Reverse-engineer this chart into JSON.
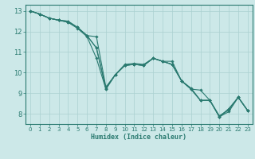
{
  "xlabel": "Humidex (Indice chaleur)",
  "xlim": [
    -0.5,
    23.5
  ],
  "ylim": [
    7.5,
    13.3
  ],
  "yticks": [
    8,
    9,
    10,
    11,
    12,
    13
  ],
  "xticks": [
    0,
    1,
    2,
    3,
    4,
    5,
    6,
    7,
    8,
    9,
    10,
    11,
    12,
    13,
    14,
    15,
    16,
    17,
    18,
    19,
    20,
    21,
    22,
    23
  ],
  "bg_color": "#cce8e8",
  "grid_color": "#aad0d0",
  "line_color": "#2a7a70",
  "lines": [
    {
      "x": [
        0,
        1,
        2,
        3,
        4,
        5,
        6,
        7,
        8,
        9,
        10,
        11,
        12,
        13,
        14,
        15,
        16,
        17,
        18,
        19,
        20,
        21,
        22,
        23
      ],
      "y": [
        13.0,
        12.85,
        12.65,
        12.55,
        12.45,
        12.15,
        11.75,
        10.7,
        9.2,
        9.9,
        10.35,
        10.4,
        10.35,
        10.7,
        10.55,
        10.55,
        9.6,
        9.2,
        9.15,
        8.65,
        7.85,
        8.25,
        8.8,
        8.15
      ]
    },
    {
      "x": [
        0,
        1,
        2,
        3,
        4,
        5,
        6,
        7,
        8,
        9,
        10,
        11,
        12,
        13,
        14,
        15,
        16,
        17,
        18,
        19,
        20,
        21,
        22,
        23
      ],
      "y": [
        13.0,
        12.85,
        12.65,
        12.55,
        12.5,
        12.2,
        11.8,
        11.2,
        9.2,
        9.9,
        10.35,
        10.4,
        10.35,
        10.7,
        10.55,
        10.4,
        9.6,
        9.2,
        8.65,
        8.65,
        7.85,
        8.1,
        8.8,
        8.15
      ]
    },
    {
      "x": [
        0,
        1,
        2,
        3,
        4,
        5,
        6,
        7,
        8,
        9,
        10,
        11,
        12,
        13,
        14,
        15,
        16,
        17,
        18,
        19,
        20,
        21,
        22,
        23
      ],
      "y": [
        13.0,
        12.85,
        12.65,
        12.55,
        12.45,
        12.2,
        11.8,
        11.2,
        9.25,
        9.9,
        10.35,
        10.4,
        10.35,
        10.7,
        10.55,
        10.4,
        9.6,
        9.2,
        8.65,
        8.65,
        7.85,
        8.2,
        8.8,
        8.15
      ]
    },
    {
      "x": [
        0,
        1,
        2,
        3,
        4,
        5,
        6,
        7,
        8,
        9,
        10,
        11,
        12,
        13,
        14,
        15,
        16,
        17,
        18,
        19,
        20,
        21,
        22,
        23
      ],
      "y": [
        13.0,
        12.85,
        12.65,
        12.55,
        12.5,
        12.2,
        11.8,
        11.75,
        9.3,
        9.9,
        10.4,
        10.45,
        10.4,
        10.7,
        10.55,
        10.4,
        9.6,
        9.25,
        8.65,
        8.65,
        7.9,
        8.2,
        8.8,
        8.15
      ]
    }
  ]
}
